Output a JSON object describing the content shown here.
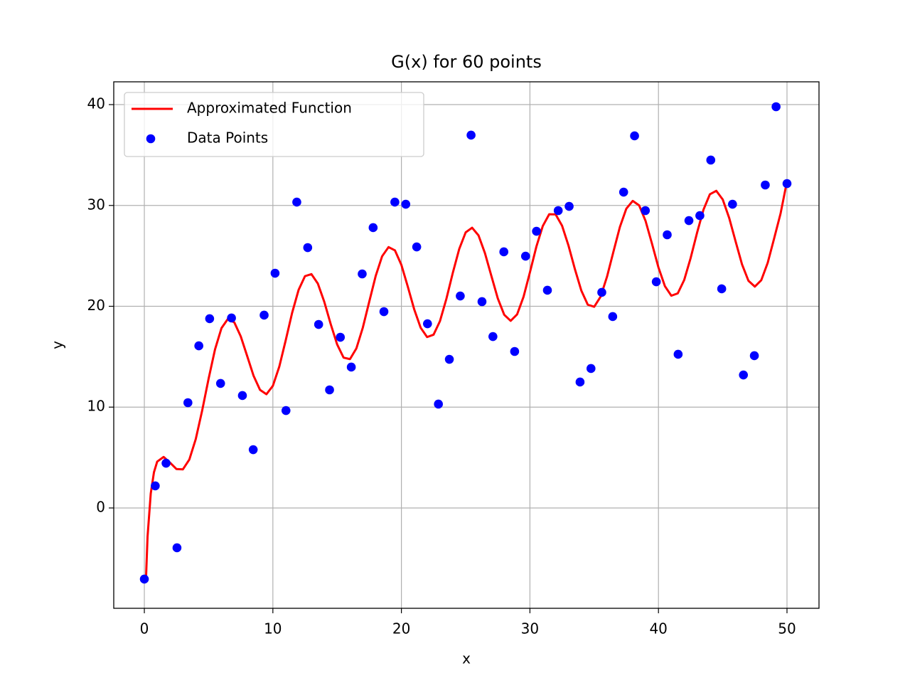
{
  "chart_data": {
    "type": "scatter",
    "title": "G(x) for 60 points",
    "x_label": "x",
    "y_label": "y",
    "xlim": [
      -2.38,
      52.49
    ],
    "ylim": [
      -9.95,
      42.26
    ],
    "xticks": [
      0,
      10,
      20,
      30,
      40,
      50
    ],
    "yticks": [
      0,
      10,
      20,
      30,
      40
    ],
    "grid": true,
    "legend": "upper left",
    "series": [
      {
        "name": "Approximated Function",
        "type": "line",
        "color": "#ff0000",
        "x": [
          0.12,
          0.25,
          0.5,
          0.75,
          1,
          1.5,
          2,
          2.5,
          3,
          3.5,
          4,
          4.5,
          5,
          5.5,
          6,
          6.5,
          7,
          7.5,
          8,
          8.5,
          9,
          9.5,
          10,
          10.5,
          11,
          11.5,
          12,
          12.5,
          13,
          13.5,
          14,
          14.5,
          15,
          15.5,
          16,
          16.5,
          17,
          17.5,
          18,
          18.5,
          19,
          19.5,
          20,
          20.5,
          21,
          21.5,
          22,
          22.5,
          23,
          23.5,
          24,
          24.5,
          25,
          25.5,
          26,
          26.5,
          27,
          27.5,
          28,
          28.5,
          29,
          29.5,
          30,
          30.5,
          31,
          31.5,
          32,
          32.5,
          33,
          33.5,
          34,
          34.5,
          35,
          35.5,
          36,
          36.5,
          37,
          37.5,
          38,
          38.5,
          39,
          39.5,
          40,
          40.5,
          41,
          41.5,
          42,
          42.5,
          43,
          43.5,
          44,
          44.5,
          45,
          45.5,
          46,
          46.5,
          47,
          47.5,
          48,
          48.5,
          49,
          49.5,
          50
        ],
        "values": [
          -7.3,
          -2.84,
          1.45,
          3.55,
          4.6,
          5.06,
          4.49,
          3.86,
          3.83,
          4.8,
          6.83,
          9.67,
          12.82,
          15.73,
          17.83,
          18.75,
          18.4,
          17.02,
          15.07,
          13.1,
          11.71,
          11.28,
          12.11,
          14.02,
          16.63,
          19.36,
          21.62,
          22.99,
          23.19,
          22.25,
          20.44,
          18.23,
          16.22,
          14.91,
          14.76,
          15.83,
          17.89,
          20.47,
          23.01,
          24.96,
          25.87,
          25.54,
          24.1,
          21.94,
          19.68,
          17.87,
          16.95,
          17.18,
          18.53,
          20.74,
          23.32,
          25.69,
          27.33,
          27.79,
          27.03,
          25.27,
          23.01,
          20.78,
          19.16,
          18.56,
          19.19,
          20.93,
          23.37,
          25.91,
          27.96,
          29.13,
          29.11,
          27.99,
          26.02,
          23.68,
          21.55,
          20.16,
          19.95,
          20.96,
          22.95,
          25.43,
          27.87,
          29.68,
          30.45,
          30.0,
          28.45,
          26.19,
          23.85,
          22.0,
          21.05,
          21.28,
          22.6,
          24.77,
          27.28,
          29.57,
          31.11,
          31.45,
          30.59,
          28.77,
          26.44,
          24.16,
          22.53,
          21.95,
          22.59,
          24.31,
          26.73,
          29.2,
          32.4
        ]
      },
      {
        "name": "Data Points",
        "type": "scatter",
        "color": "#0000ff",
        "x": [
          0,
          0.85,
          1.69,
          2.54,
          3.39,
          4.24,
          5.08,
          5.93,
          6.78,
          7.63,
          8.47,
          9.32,
          10.17,
          11.02,
          11.86,
          12.71,
          13.56,
          14.41,
          15.25,
          16.1,
          16.95,
          17.8,
          18.64,
          19.49,
          20.34,
          21.19,
          22.03,
          22.88,
          23.73,
          24.58,
          25.42,
          26.27,
          27.12,
          27.97,
          28.81,
          29.66,
          30.51,
          31.36,
          32.2,
          33.05,
          33.9,
          34.75,
          35.59,
          36.44,
          37.29,
          38.14,
          38.98,
          39.83,
          40.68,
          41.53,
          42.37,
          43.22,
          44.07,
          44.92,
          45.76,
          46.61,
          47.46,
          48.31,
          49.15,
          50
        ],
        "values": [
          -7.05,
          2.19,
          4.44,
          -3.95,
          10.44,
          16.08,
          18.77,
          12.35,
          18.84,
          11.15,
          5.78,
          19.12,
          23.28,
          9.66,
          30.33,
          25.82,
          18.2,
          11.71,
          16.93,
          13.97,
          23.21,
          27.8,
          19.47,
          30.33,
          30.12,
          25.89,
          18.27,
          10.3,
          14.74,
          21.02,
          36.97,
          20.46,
          17.0,
          25.4,
          15.52,
          24.97,
          27.44,
          21.59,
          29.49,
          29.91,
          12.49,
          13.83,
          21.38,
          18.98,
          31.32,
          36.9,
          29.49,
          22.43,
          27.09,
          15.24,
          28.5,
          28.99,
          34.5,
          21.73,
          30.12,
          13.19,
          15.1,
          32.03,
          39.79,
          32.17
        ]
      }
    ]
  }
}
